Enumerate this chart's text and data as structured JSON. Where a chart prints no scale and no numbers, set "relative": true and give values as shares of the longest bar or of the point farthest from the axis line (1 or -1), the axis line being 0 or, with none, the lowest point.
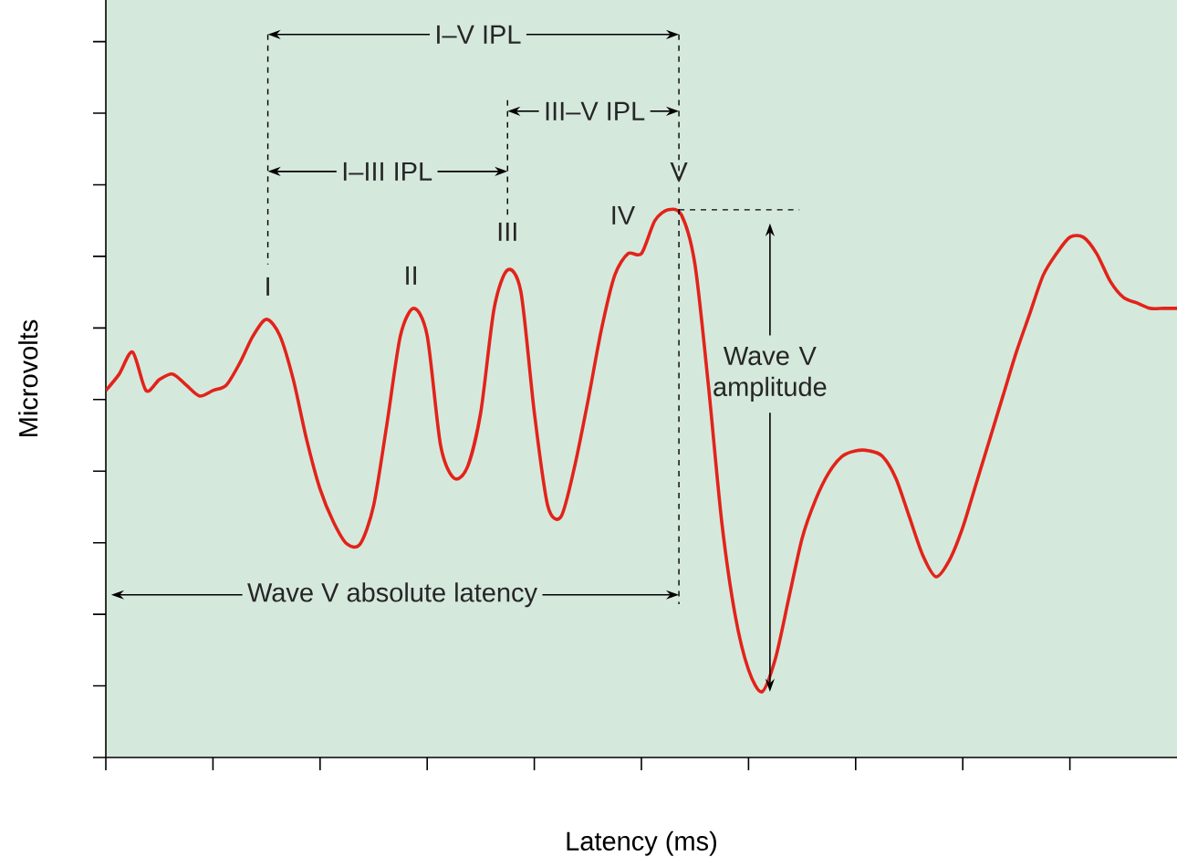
{
  "chart_data": {
    "type": "line",
    "relative": true,
    "xlabel": "Latency (ms)",
    "ylabel": "Microvolts",
    "categories": [
      null,
      null,
      null,
      null,
      null,
      null,
      null,
      null,
      null,
      null,
      null,
      null,
      null,
      null,
      null,
      null,
      null,
      null,
      null,
      null,
      null,
      null,
      null,
      null,
      null,
      null,
      null,
      null,
      null,
      null,
      null,
      null,
      null,
      null,
      null,
      null,
      null,
      null,
      null,
      null,
      null,
      null,
      null,
      null,
      null,
      null,
      null,
      null,
      null,
      null,
      null,
      null,
      null,
      null,
      null,
      null,
      null,
      null,
      null,
      null,
      null,
      null,
      null,
      null,
      null,
      null,
      null,
      null,
      null,
      null,
      null,
      null,
      null,
      null,
      null,
      null,
      null,
      null,
      null,
      null,
      null
    ],
    "series": [
      {
        "color": "#e2231a",
        "values": [
          0.67,
          0.7,
          0.74,
          0.67,
          0.69,
          0.7,
          0.68,
          0.66,
          0.67,
          0.68,
          0.72,
          0.77,
          0.8,
          0.77,
          0.69,
          0.58,
          0.49,
          0.43,
          0.39,
          0.39,
          0.46,
          0.61,
          0.77,
          0.82,
          0.77,
          0.57,
          0.51,
          0.53,
          0.63,
          0.82,
          0.89,
          0.85,
          0.63,
          0.46,
          0.44,
          0.53,
          0.65,
          0.78,
          0.88,
          0.92,
          0.92,
          0.98,
          1.0,
          0.99,
          0.9,
          0.68,
          0.43,
          0.26,
          0.16,
          0.12,
          0.18,
          0.29,
          0.4,
          0.47,
          0.52,
          0.55,
          0.56,
          0.56,
          0.55,
          0.51,
          0.44,
          0.37,
          0.33,
          0.36,
          0.42,
          0.5,
          0.58,
          0.66,
          0.74,
          0.81,
          0.88,
          0.92,
          0.95,
          0.95,
          0.92,
          0.87,
          0.84,
          0.83,
          0.82,
          0.82,
          0.82
        ]
      }
    ],
    "annotations": [
      "I",
      "II",
      "III",
      "IV",
      "V",
      "I–V IPL",
      "III–V IPL",
      "I–III IPL",
      "Wave V amplitude",
      "Wave V absolute latency"
    ]
  }
}
